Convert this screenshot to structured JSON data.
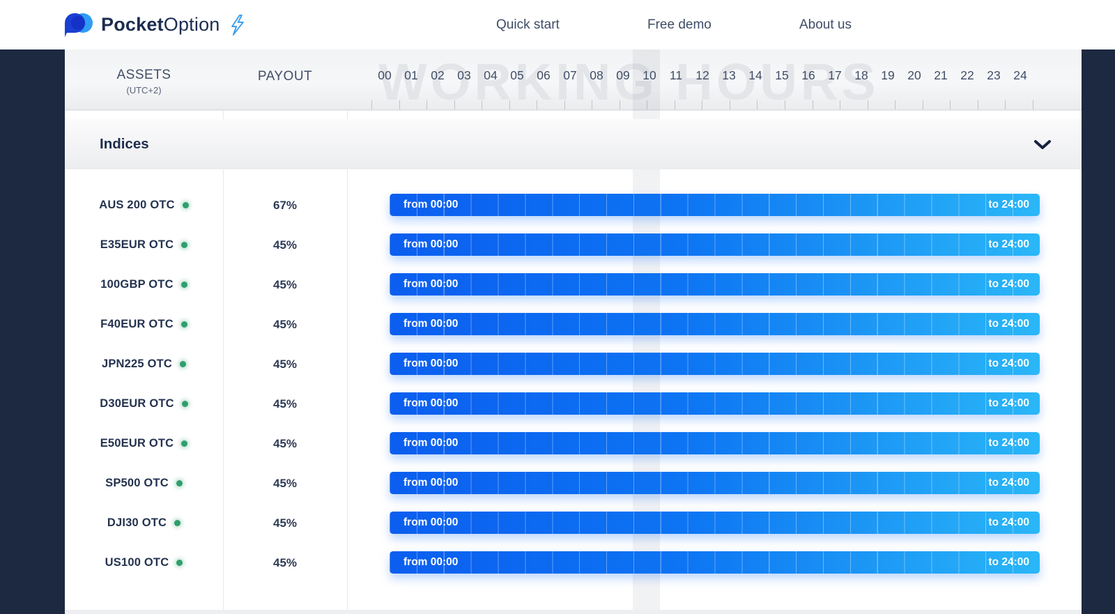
{
  "brand": {
    "name_bold": "Pocket",
    "name_light": "Option"
  },
  "nav": {
    "items": [
      {
        "label": "Quick start"
      },
      {
        "label": "Free demo"
      },
      {
        "label": "About us"
      }
    ]
  },
  "watermark": "WORKING HOURS",
  "table": {
    "assets_header": "ASSETS",
    "assets_subheader": "(UTC+2)",
    "payout_header": "PAYOUT",
    "hours": [
      "00",
      "01",
      "02",
      "03",
      "04",
      "05",
      "06",
      "07",
      "08",
      "09",
      "10",
      "11",
      "12",
      "13",
      "14",
      "15",
      "16",
      "17",
      "18",
      "19",
      "20",
      "21",
      "22",
      "23",
      "24"
    ],
    "section": {
      "title": "Indices"
    },
    "rows": [
      {
        "name": "AUS 200 OTC",
        "status": "active",
        "payout": "67%",
        "from": "from 00:00",
        "to": "to 24:00"
      },
      {
        "name": "E35EUR OTC",
        "status": "active",
        "payout": "45%",
        "from": "from 00:00",
        "to": "to 24:00"
      },
      {
        "name": "100GBP OTC",
        "status": "active",
        "payout": "45%",
        "from": "from 00:00",
        "to": "to 24:00"
      },
      {
        "name": "F40EUR OTC",
        "status": "active",
        "payout": "45%",
        "from": "from 00:00",
        "to": "to 24:00"
      },
      {
        "name": "JPN225 OTC",
        "status": "active",
        "payout": "45%",
        "from": "from 00:00",
        "to": "to 24:00"
      },
      {
        "name": "D30EUR OTC",
        "status": "active",
        "payout": "45%",
        "from": "from 00:00",
        "to": "to 24:00"
      },
      {
        "name": "E50EUR OTC",
        "status": "active",
        "payout": "45%",
        "from": "from 00:00",
        "to": "to 24:00"
      },
      {
        "name": "SP500 OTC",
        "status": "active",
        "payout": "45%",
        "from": "from 00:00",
        "to": "to 24:00"
      },
      {
        "name": "DJI30 OTC",
        "status": "active",
        "payout": "45%",
        "from": "from 00:00",
        "to": "to 24:00"
      },
      {
        "name": "US100 OTC",
        "status": "active",
        "payout": "45%",
        "from": "from 00:00",
        "to": "to 24:00"
      }
    ]
  },
  "colors": {
    "page_frame": "#1c2940",
    "bar_gradient_start": "#0b5eef",
    "bar_gradient_end": "#2ab7f7",
    "active_dot": "#2f9e6d",
    "brand_navy": "#1c2d4f",
    "logo_dark_blue": "#1b3fd3",
    "logo_light_blue": "#2f9cf6",
    "bolt_blue": "#3d9ff0"
  }
}
